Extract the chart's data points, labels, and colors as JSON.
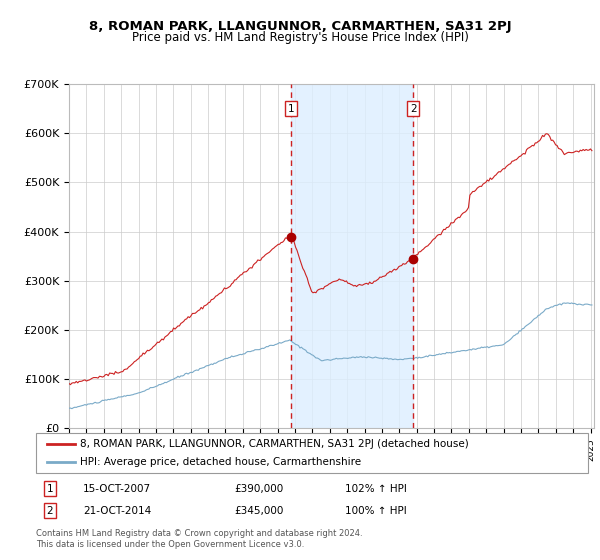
{
  "title1": "8, ROMAN PARK, LLANGUNNOR, CARMARTHEN, SA31 2PJ",
  "title2": "Price paid vs. HM Land Registry's House Price Index (HPI)",
  "ylim": [
    0,
    700000
  ],
  "yticks": [
    0,
    100000,
    200000,
    300000,
    400000,
    500000,
    600000,
    700000
  ],
  "ytick_labels": [
    "£0",
    "£100K",
    "£200K",
    "£300K",
    "£400K",
    "£500K",
    "£600K",
    "£700K"
  ],
  "sale1_date": 2007.79,
  "sale1_price": 390000,
  "sale1_label": "1",
  "sale1_text": "15-OCT-2007",
  "sale1_price_text": "£390,000",
  "sale1_hpi": "102% ↑ HPI",
  "sale2_date": 2014.81,
  "sale2_price": 345000,
  "sale2_label": "2",
  "sale2_text": "21-OCT-2014",
  "sale2_price_text": "£345,000",
  "sale2_hpi": "100% ↑ HPI",
  "red_line_color": "#cc2222",
  "blue_line_color": "#7aaac8",
  "shading_color": "#ddeeff",
  "grid_color": "#cccccc",
  "legend_label_red": "8, ROMAN PARK, LLANGUNNOR, CARMARTHEN, SA31 2PJ (detached house)",
  "legend_label_blue": "HPI: Average price, detached house, Carmarthenshire",
  "footer_text": "Contains HM Land Registry data © Crown copyright and database right 2024.\nThis data is licensed under the Open Government Licence v3.0."
}
